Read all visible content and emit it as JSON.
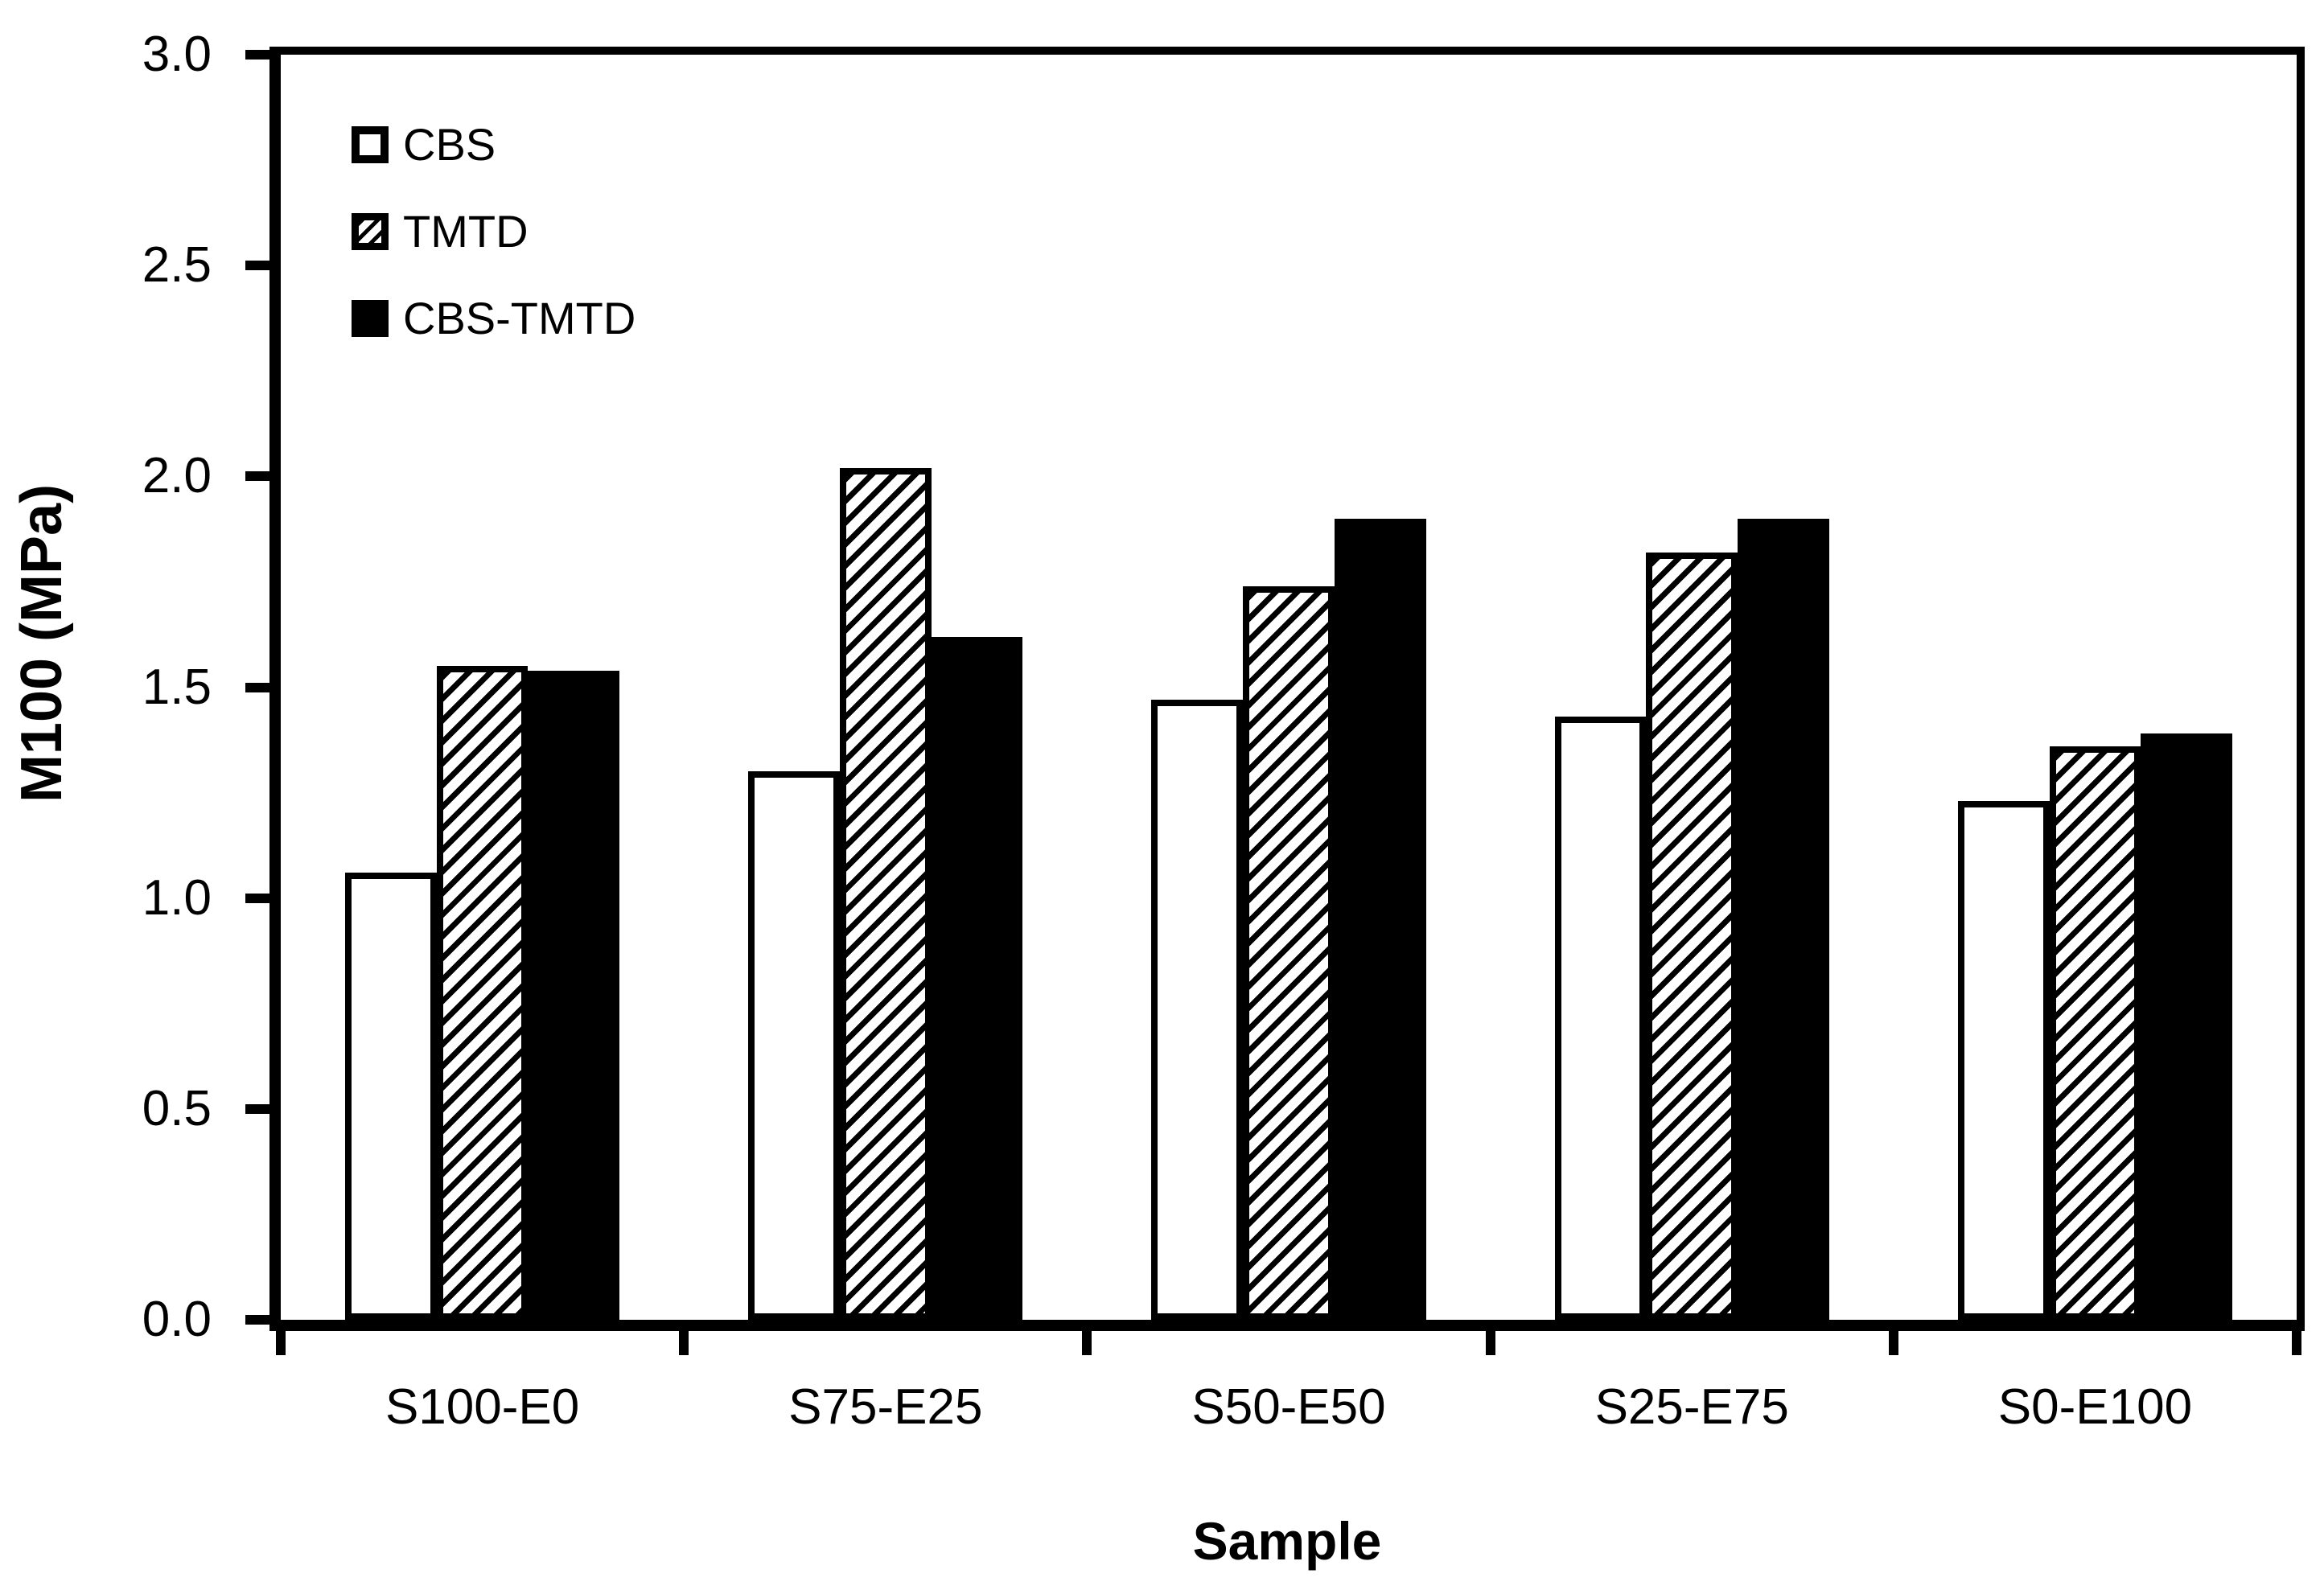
{
  "chart_data": {
    "type": "bar",
    "title": "",
    "xlabel": "Sample",
    "ylabel": "M100 (MPa)",
    "categories": [
      "S100-E0",
      "S75-E25",
      "S50-E50",
      "S25-E75",
      "S0-E100"
    ],
    "series": [
      {
        "name": "CBS",
        "style": "open",
        "values": [
          1.06,
          1.3,
          1.47,
          1.43,
          1.23
        ]
      },
      {
        "name": "TMTD",
        "style": "hatched",
        "values": [
          1.55,
          2.02,
          1.74,
          1.82,
          1.36
        ]
      },
      {
        "name": "CBS-TMTD",
        "style": "solid",
        "values": [
          1.54,
          1.62,
          1.9,
          1.9,
          1.39
        ]
      }
    ],
    "ylim": [
      0.0,
      3.0
    ],
    "ytick_step": 0.5,
    "yticks": [
      "0.0",
      "0.5",
      "1.0",
      "1.5",
      "2.0",
      "2.5",
      "3.0"
    ],
    "legend_position": "top-left-inside",
    "grid": false
  },
  "colors": {
    "ink": "#000000",
    "background": "#ffffff",
    "bar_fill_solid": "#000000",
    "bar_fill_open": "#ffffff"
  }
}
